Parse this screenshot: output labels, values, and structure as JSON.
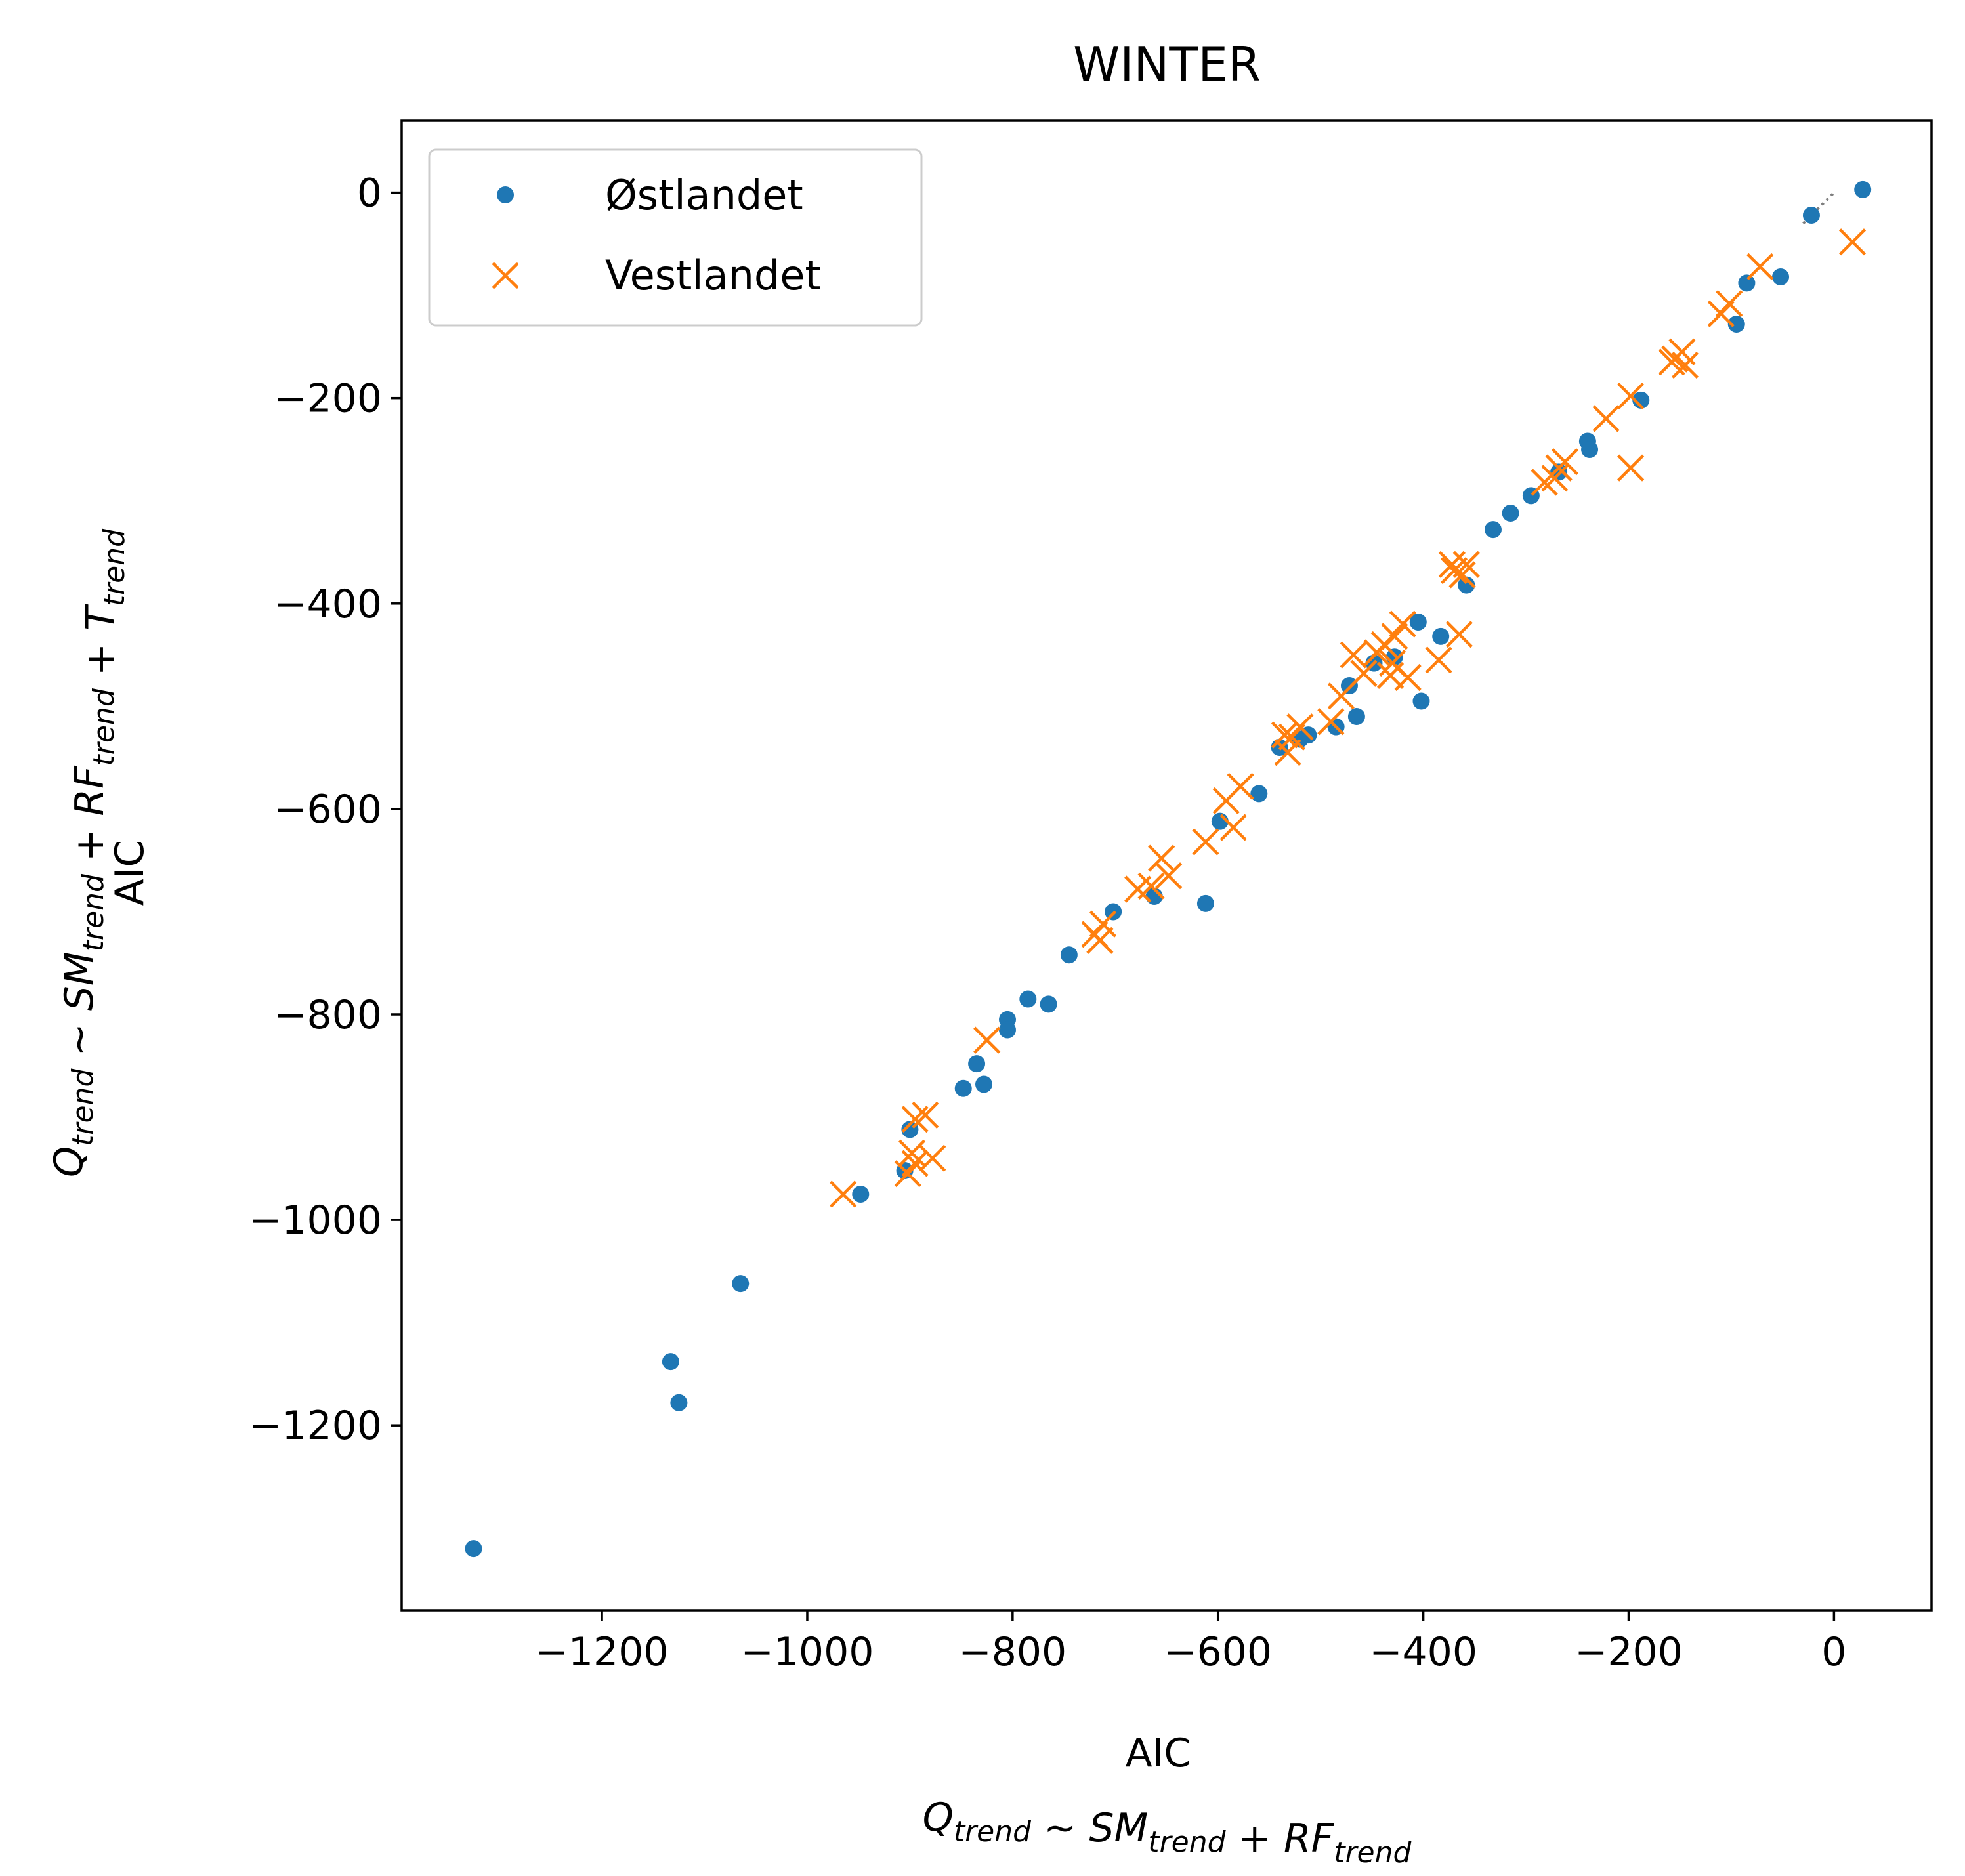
{
  "chart_data": {
    "type": "scatter",
    "title": "WINTER",
    "xlabel": {
      "line1": "AIC",
      "line2": {
        "parts": [
          {
            "t": "Q",
            "sub": "trend"
          },
          {
            "t": " ~ "
          },
          {
            "t": "SM",
            "sub": "trend"
          },
          {
            "t": " + "
          },
          {
            "t": "RF",
            "sub": "trend"
          }
        ]
      }
    },
    "ylabel": {
      "line1": "AIC",
      "line2": {
        "parts": [
          {
            "t": "Q",
            "sub": "trend"
          },
          {
            "t": " ~ "
          },
          {
            "t": "SM",
            "sub": "trend"
          },
          {
            "t": " + "
          },
          {
            "t": "RF",
            "sub": "trend"
          },
          {
            "t": " + "
          },
          {
            "t": "T",
            "sub": "trend"
          }
        ]
      }
    },
    "xlim": [
      -1395,
      95
    ],
    "ylim": [
      -1380,
      70
    ],
    "xticks": [
      -1200,
      -1000,
      -800,
      -600,
      -400,
      -200,
      0
    ],
    "yticks": [
      0,
      -200,
      -400,
      -600,
      -800,
      -1000,
      -1200
    ],
    "xtick_labels": [
      "−1200",
      "−1000",
      "−800",
      "−600",
      "−400",
      "−200",
      "0"
    ],
    "ytick_labels": [
      "0",
      "−200",
      "−400",
      "−600",
      "−800",
      "−1000",
      "−1200"
    ],
    "legend_position": "upper-left",
    "grid": false,
    "reference_line": {
      "x": [
        -30,
        0
      ],
      "y": [
        -30,
        0
      ],
      "color": "#7f7f7f",
      "style": "dotted"
    },
    "series": [
      {
        "name": "Østlandet",
        "marker": "circle",
        "color": "#1f77b4",
        "points": [
          [
            28,
            3
          ],
          [
            -22,
            -22
          ],
          [
            -52,
            -82
          ],
          [
            -85,
            -88
          ],
          [
            -95,
            -128
          ],
          [
            -188,
            -202
          ],
          [
            -240,
            -242
          ],
          [
            -238,
            -250
          ],
          [
            -268,
            -272
          ],
          [
            -295,
            -295
          ],
          [
            -315,
            -312
          ],
          [
            -332,
            -328
          ],
          [
            -358,
            -382
          ],
          [
            -383,
            -432
          ],
          [
            -405,
            -418
          ],
          [
            -402,
            -495
          ],
          [
            -428,
            -452
          ],
          [
            -448,
            -458
          ],
          [
            -465,
            -510
          ],
          [
            -472,
            -480
          ],
          [
            -485,
            -520
          ],
          [
            -512,
            -528
          ],
          [
            -520,
            -532
          ],
          [
            -540,
            -540
          ],
          [
            -560,
            -585
          ],
          [
            -598,
            -612
          ],
          [
            -612,
            -692
          ],
          [
            -662,
            -685
          ],
          [
            -702,
            -700
          ],
          [
            -745,
            -742
          ],
          [
            -765,
            -790
          ],
          [
            -785,
            -785
          ],
          [
            -805,
            -805
          ],
          [
            -805,
            -815
          ],
          [
            -828,
            -868
          ],
          [
            -835,
            -848
          ],
          [
            -848,
            -872
          ],
          [
            -900,
            -912
          ],
          [
            -905,
            -952
          ],
          [
            -948,
            -975
          ],
          [
            -1065,
            -1062
          ],
          [
            -1133,
            -1138
          ],
          [
            -1125,
            -1178
          ],
          [
            -1325,
            -1320
          ]
        ]
      },
      {
        "name": "Vestlandet",
        "marker": "x",
        "color": "#ff7f0e",
        "points": [
          [
            18,
            -48
          ],
          [
            -72,
            -72
          ],
          [
            -102,
            -108
          ],
          [
            -110,
            -118
          ],
          [
            -148,
            -155
          ],
          [
            -155,
            -162
          ],
          [
            -158,
            -165
          ],
          [
            -145,
            -168
          ],
          [
            -198,
            -198
          ],
          [
            -222,
            -220
          ],
          [
            -198,
            -268
          ],
          [
            -262,
            -262
          ],
          [
            -272,
            -278
          ],
          [
            -282,
            -282
          ],
          [
            -268,
            -268
          ],
          [
            -358,
            -362
          ],
          [
            -372,
            -362
          ],
          [
            -362,
            -372
          ],
          [
            -370,
            -368
          ],
          [
            -365,
            -430
          ],
          [
            -385,
            -455
          ],
          [
            -420,
            -420
          ],
          [
            -428,
            -432
          ],
          [
            -438,
            -440
          ],
          [
            -445,
            -448
          ],
          [
            -430,
            -458
          ],
          [
            -432,
            -470
          ],
          [
            -415,
            -472
          ],
          [
            -458,
            -468
          ],
          [
            -468,
            -450
          ],
          [
            -480,
            -490
          ],
          [
            -490,
            -515
          ],
          [
            -528,
            -530
          ],
          [
            -532,
            -545
          ],
          [
            -520,
            -520
          ],
          [
            -535,
            -528
          ],
          [
            -578,
            -578
          ],
          [
            -592,
            -592
          ],
          [
            -585,
            -618
          ],
          [
            -612,
            -632
          ],
          [
            -655,
            -648
          ],
          [
            -648,
            -665
          ],
          [
            -665,
            -675
          ],
          [
            -678,
            -678
          ],
          [
            -712,
            -712
          ],
          [
            -720,
            -722
          ],
          [
            -715,
            -728
          ],
          [
            -825,
            -825
          ],
          [
            -895,
            -902
          ],
          [
            -885,
            -898
          ],
          [
            -898,
            -935
          ],
          [
            -878,
            -940
          ],
          [
            -902,
            -955
          ],
          [
            -895,
            -945
          ],
          [
            -965,
            -975
          ]
        ]
      }
    ]
  }
}
